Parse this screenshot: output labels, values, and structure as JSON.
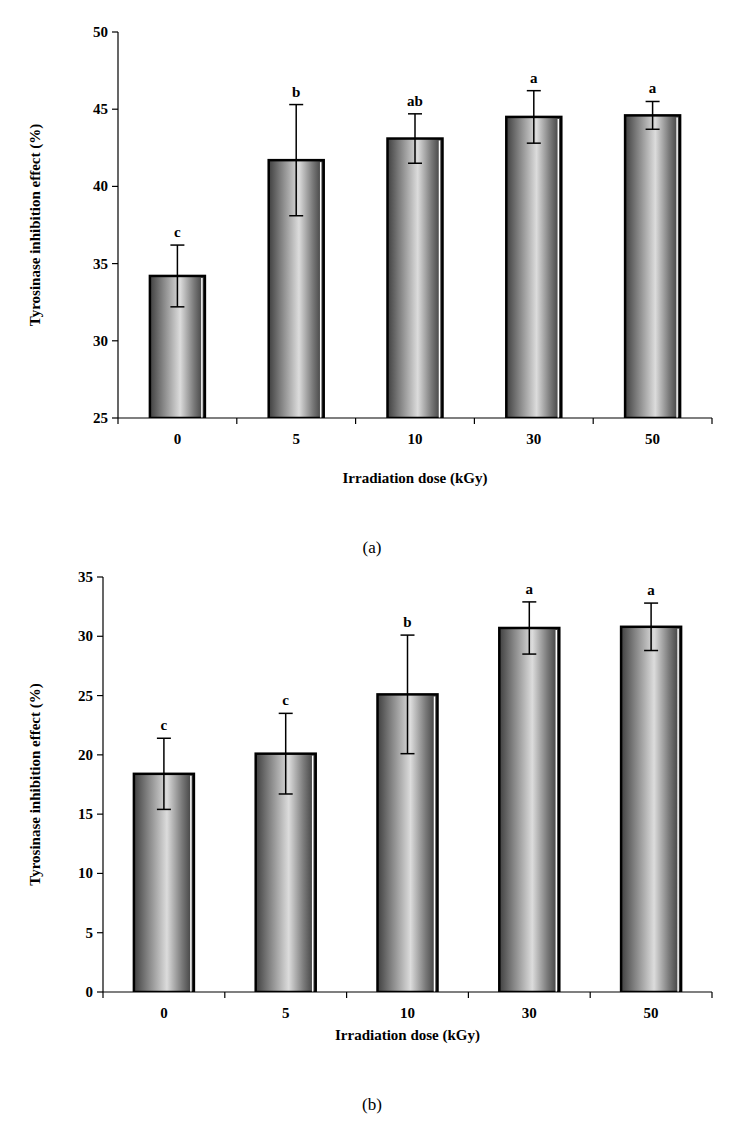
{
  "chart_data": [
    {
      "type": "bar",
      "title": "(a)",
      "x_label": "Irradiation dose (kGy)",
      "y_label": "Tyrosinase inhibition effect (%)",
      "categories": [
        "0",
        "5",
        "10",
        "30",
        "50"
      ],
      "values": [
        34.2,
        41.7,
        43.1,
        44.5,
        44.6
      ],
      "errors": [
        2.0,
        3.6,
        1.6,
        1.7,
        0.9
      ],
      "annotations": [
        "c",
        "b",
        "ab",
        "a",
        "a"
      ],
      "ylim": [
        25,
        50
      ],
      "yticks": [
        25,
        30,
        35,
        40,
        45,
        50
      ],
      "grid": false
    },
    {
      "type": "bar",
      "title": "(b)",
      "x_label": "Irradiation dose (kGy)",
      "y_label": "Tyrosinase inhibition effect (%)",
      "categories": [
        "0",
        "5",
        "10",
        "30",
        "50"
      ],
      "values": [
        18.4,
        20.1,
        25.1,
        30.7,
        30.8
      ],
      "errors": [
        3.0,
        3.4,
        5.0,
        2.2,
        2.0
      ],
      "annotations": [
        "c",
        "c",
        "b",
        "a",
        "a"
      ],
      "ylim": [
        0,
        35
      ],
      "yticks": [
        0,
        5,
        10,
        15,
        20,
        25,
        30,
        35
      ],
      "grid": false
    }
  ]
}
